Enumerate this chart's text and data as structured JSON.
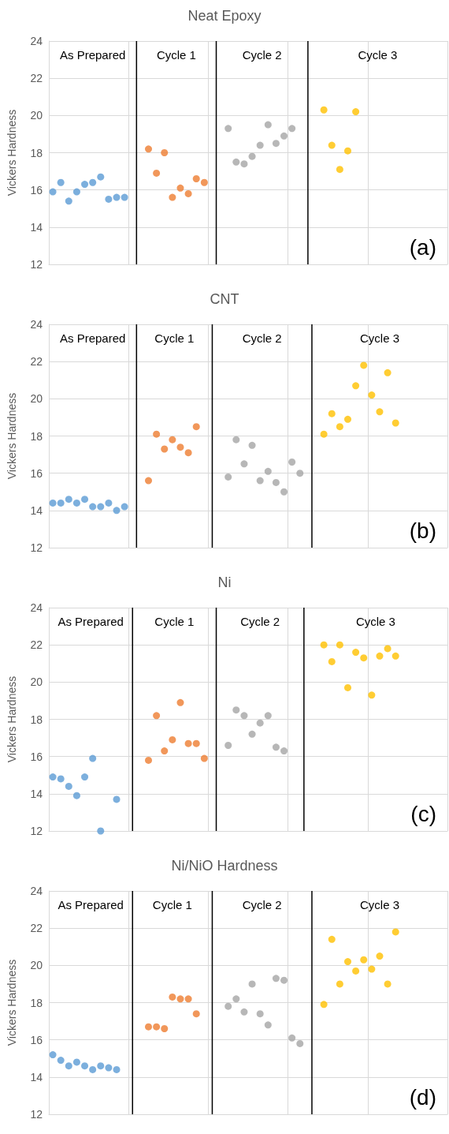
{
  "chart_data": [
    {
      "type": "scatter",
      "title": "Neat Epoxy",
      "ylabel": "Vickers Hardness",
      "categories": [
        null,
        null,
        null,
        null,
        null,
        null,
        null,
        null,
        null,
        null,
        null,
        null,
        null,
        null,
        null,
        null,
        null,
        null,
        null,
        null,
        null,
        null,
        null,
        null,
        null,
        null,
        null,
        null,
        null,
        null,
        null,
        null,
        null,
        null,
        null,
        null,
        null,
        null,
        null,
        null,
        null,
        null,
        null,
        null,
        null,
        null,
        null,
        null,
        null,
        null
      ],
      "ylim": [
        12,
        24
      ],
      "yticks": [
        12,
        14,
        16,
        18,
        20,
        22,
        24
      ],
      "tick_labels": "y",
      "grid": true,
      "marker": "circle",
      "series": [
        {
          "color": "#5b9bd5",
          "values": [
            15.9,
            16.4,
            15.4,
            15.9,
            16.3,
            16.4,
            16.7,
            15.5,
            15.6,
            15.6,
            null,
            null,
            null,
            null,
            null,
            null,
            null,
            null,
            null,
            null,
            null,
            null,
            null,
            null,
            null,
            null,
            null,
            null,
            null,
            null,
            null,
            null,
            null,
            null,
            null,
            null,
            null,
            null,
            null,
            null,
            null,
            null,
            null,
            null,
            null,
            null,
            null,
            null,
            null,
            null
          ]
        },
        {
          "color": "#ed7d31",
          "values": [
            null,
            null,
            null,
            null,
            null,
            null,
            null,
            null,
            null,
            null,
            null,
            null,
            18.2,
            16.9,
            18.0,
            15.6,
            16.1,
            15.8,
            16.6,
            16.4,
            null,
            null,
            null,
            null,
            null,
            null,
            null,
            null,
            null,
            null,
            null,
            null,
            null,
            null,
            null,
            null,
            null,
            null,
            null,
            null,
            null,
            null,
            null,
            null,
            null,
            null,
            null,
            null,
            null,
            null
          ]
        },
        {
          "color": "#a5a5a5",
          "values": [
            null,
            null,
            null,
            null,
            null,
            null,
            null,
            null,
            null,
            null,
            null,
            null,
            null,
            null,
            null,
            null,
            null,
            null,
            null,
            null,
            null,
            null,
            19.3,
            17.5,
            17.4,
            17.8,
            18.4,
            19.5,
            18.5,
            18.9,
            19.3,
            null,
            null,
            null,
            null,
            null,
            null,
            null,
            null,
            null,
            null,
            null,
            null,
            null,
            null,
            null,
            null,
            null,
            null,
            null
          ]
        },
        {
          "color": "#ffc000",
          "values": [
            null,
            null,
            null,
            null,
            null,
            null,
            null,
            null,
            null,
            null,
            null,
            null,
            null,
            null,
            null,
            null,
            null,
            null,
            null,
            null,
            null,
            null,
            null,
            null,
            null,
            null,
            null,
            null,
            null,
            null,
            null,
            null,
            null,
            null,
            20.3,
            18.4,
            17.1,
            18.1,
            20.2,
            null,
            null,
            null,
            null,
            null,
            null,
            null,
            null,
            null,
            null,
            null
          ]
        }
      ],
      "annotations": [
        "As Prepared",
        "Cycle 1",
        "Cycle 2",
        "Cycle 3",
        "(a)"
      ]
    },
    {
      "type": "scatter",
      "title": "CNT",
      "ylabel": "Vickers Hardness",
      "categories": [
        null,
        null,
        null,
        null,
        null,
        null,
        null,
        null,
        null,
        null,
        null,
        null,
        null,
        null,
        null,
        null,
        null,
        null,
        null,
        null,
        null,
        null,
        null,
        null,
        null,
        null,
        null,
        null,
        null,
        null,
        null,
        null,
        null,
        null,
        null,
        null,
        null,
        null,
        null,
        null,
        null,
        null,
        null,
        null,
        null,
        null,
        null,
        null,
        null,
        null
      ],
      "ylim": [
        12,
        24
      ],
      "yticks": [
        12,
        14,
        16,
        18,
        20,
        22,
        24
      ],
      "tick_labels": "y",
      "grid": true,
      "marker": "circle",
      "series": [
        {
          "color": "#5b9bd5",
          "values": [
            14.4,
            14.4,
            14.6,
            14.4,
            14.6,
            14.2,
            14.2,
            14.4,
            14.0,
            14.2,
            null,
            null,
            null,
            null,
            null,
            null,
            null,
            null,
            null,
            null,
            null,
            null,
            null,
            null,
            null,
            null,
            null,
            null,
            null,
            null,
            null,
            null,
            null,
            null,
            null,
            null,
            null,
            null,
            null,
            null,
            null,
            null,
            null,
            null,
            null,
            null,
            null,
            null,
            null,
            null
          ]
        },
        {
          "color": "#ed7d31",
          "values": [
            null,
            null,
            null,
            null,
            null,
            null,
            null,
            null,
            null,
            null,
            null,
            null,
            15.6,
            18.1,
            17.3,
            17.8,
            17.4,
            17.1,
            18.5,
            null,
            null,
            null,
            null,
            null,
            null,
            null,
            null,
            null,
            null,
            null,
            null,
            null,
            null,
            null,
            null,
            null,
            null,
            null,
            null,
            null,
            null,
            null,
            null,
            null,
            null,
            null,
            null,
            null,
            null,
            null
          ]
        },
        {
          "color": "#a5a5a5",
          "values": [
            null,
            null,
            null,
            null,
            null,
            null,
            null,
            null,
            null,
            null,
            null,
            null,
            null,
            null,
            null,
            null,
            null,
            null,
            null,
            null,
            null,
            null,
            15.8,
            17.8,
            16.5,
            17.5,
            15.6,
            16.1,
            15.5,
            15.0,
            16.6,
            16.0,
            null,
            null,
            null,
            null,
            null,
            null,
            null,
            null,
            null,
            null,
            null,
            null,
            null,
            null,
            null,
            null,
            null,
            null
          ]
        },
        {
          "color": "#ffc000",
          "values": [
            null,
            null,
            null,
            null,
            null,
            null,
            null,
            null,
            null,
            null,
            null,
            null,
            null,
            null,
            null,
            null,
            null,
            null,
            null,
            null,
            null,
            null,
            null,
            null,
            null,
            null,
            null,
            null,
            null,
            null,
            null,
            null,
            null,
            null,
            18.1,
            19.2,
            18.5,
            18.9,
            20.7,
            21.8,
            20.2,
            19.3,
            21.4,
            18.7,
            null,
            null,
            null,
            null,
            null,
            null
          ]
        }
      ],
      "annotations": [
        "As Prepared",
        "Cycle 1",
        "Cycle 2",
        "Cycle 3",
        "(b)"
      ]
    },
    {
      "type": "scatter",
      "title": "Ni",
      "ylabel": "Vickers Hardness",
      "categories": [
        null,
        null,
        null,
        null,
        null,
        null,
        null,
        null,
        null,
        null,
        null,
        null,
        null,
        null,
        null,
        null,
        null,
        null,
        null,
        null,
        null,
        null,
        null,
        null,
        null,
        null,
        null,
        null,
        null,
        null,
        null,
        null,
        null,
        null,
        null,
        null,
        null,
        null,
        null,
        null,
        null,
        null,
        null,
        null,
        null,
        null,
        null,
        null,
        null,
        null
      ],
      "ylim": [
        12,
        24
      ],
      "yticks": [
        12,
        14,
        16,
        18,
        20,
        22,
        24
      ],
      "tick_labels": "y",
      "grid": true,
      "marker": "circle",
      "series": [
        {
          "color": "#5b9bd5",
          "values": [
            14.9,
            14.8,
            14.4,
            13.9,
            14.9,
            15.9,
            12.0,
            null,
            13.7,
            null,
            null,
            null,
            null,
            null,
            null,
            null,
            null,
            null,
            null,
            null,
            null,
            null,
            null,
            null,
            null,
            null,
            null,
            null,
            null,
            null,
            null,
            null,
            null,
            null,
            null,
            null,
            null,
            null,
            null,
            null,
            null,
            null,
            null,
            null,
            null,
            null,
            null,
            null,
            null,
            null
          ]
        },
        {
          "color": "#ed7d31",
          "values": [
            null,
            null,
            null,
            null,
            null,
            null,
            null,
            null,
            null,
            null,
            null,
            null,
            15.8,
            18.2,
            16.3,
            16.9,
            18.9,
            16.7,
            16.7,
            15.9,
            null,
            null,
            null,
            null,
            null,
            null,
            null,
            null,
            null,
            null,
            null,
            null,
            null,
            null,
            null,
            null,
            null,
            null,
            null,
            null,
            null,
            null,
            null,
            null,
            null,
            null,
            null,
            null,
            null,
            null
          ]
        },
        {
          "color": "#a5a5a5",
          "values": [
            null,
            null,
            null,
            null,
            null,
            null,
            null,
            null,
            null,
            null,
            null,
            null,
            null,
            null,
            null,
            null,
            null,
            null,
            null,
            null,
            null,
            null,
            16.6,
            18.5,
            18.2,
            17.2,
            17.8,
            18.2,
            16.5,
            16.3,
            null,
            null,
            null,
            null,
            null,
            null,
            null,
            null,
            null,
            null,
            null,
            null,
            null,
            null,
            null,
            null,
            null,
            null,
            null,
            null
          ]
        },
        {
          "color": "#ffc000",
          "values": [
            null,
            null,
            null,
            null,
            null,
            null,
            null,
            null,
            null,
            null,
            null,
            null,
            null,
            null,
            null,
            null,
            null,
            null,
            null,
            null,
            null,
            null,
            null,
            null,
            null,
            null,
            null,
            null,
            null,
            null,
            null,
            null,
            null,
            null,
            22.0,
            21.1,
            22.0,
            19.7,
            21.6,
            21.3,
            19.3,
            21.4,
            21.8,
            21.4,
            null,
            null,
            null,
            null,
            null,
            null
          ]
        }
      ],
      "annotations": [
        "As Prepared",
        "Cycle 1",
        "Cycle 2",
        "Cycle 3",
        "(c)"
      ]
    },
    {
      "type": "scatter",
      "title": "Ni/NiO Hardness",
      "ylabel": "Vickers Hardness",
      "categories": [
        null,
        null,
        null,
        null,
        null,
        null,
        null,
        null,
        null,
        null,
        null,
        null,
        null,
        null,
        null,
        null,
        null,
        null,
        null,
        null,
        null,
        null,
        null,
        null,
        null,
        null,
        null,
        null,
        null,
        null,
        null,
        null,
        null,
        null,
        null,
        null,
        null,
        null,
        null,
        null,
        null,
        null,
        null,
        null,
        null,
        null,
        null,
        null,
        null,
        null
      ],
      "ylim": [
        12,
        24
      ],
      "yticks": [
        12,
        14,
        16,
        18,
        20,
        22,
        24
      ],
      "tick_labels": "y",
      "grid": true,
      "marker": "circle",
      "series": [
        {
          "color": "#5b9bd5",
          "values": [
            15.2,
            14.9,
            14.6,
            14.8,
            14.6,
            14.4,
            14.6,
            14.5,
            14.4,
            null,
            null,
            null,
            null,
            null,
            null,
            null,
            null,
            null,
            null,
            null,
            null,
            null,
            null,
            null,
            null,
            null,
            null,
            null,
            null,
            null,
            null,
            null,
            null,
            null,
            null,
            null,
            null,
            null,
            null,
            null,
            null,
            null,
            null,
            null,
            null,
            null,
            null,
            null,
            null,
            null
          ]
        },
        {
          "color": "#ed7d31",
          "values": [
            null,
            null,
            null,
            null,
            null,
            null,
            null,
            null,
            null,
            null,
            null,
            null,
            16.7,
            16.7,
            16.6,
            18.3,
            18.2,
            18.2,
            17.4,
            null,
            null,
            null,
            null,
            null,
            null,
            null,
            null,
            null,
            null,
            null,
            null,
            null,
            null,
            null,
            null,
            null,
            null,
            null,
            null,
            null,
            null,
            null,
            null,
            null,
            null,
            null,
            null,
            null,
            null,
            null
          ]
        },
        {
          "color": "#a5a5a5",
          "values": [
            null,
            null,
            null,
            null,
            null,
            null,
            null,
            null,
            null,
            null,
            null,
            null,
            null,
            null,
            null,
            null,
            null,
            null,
            null,
            null,
            null,
            null,
            17.8,
            18.2,
            17.5,
            19.0,
            17.4,
            16.8,
            19.3,
            19.2,
            16.1,
            15.8,
            null,
            null,
            null,
            null,
            null,
            null,
            null,
            null,
            null,
            null,
            null,
            null,
            null,
            null,
            null,
            null,
            null,
            null
          ]
        },
        {
          "color": "#ffc000",
          "values": [
            null,
            null,
            null,
            null,
            null,
            null,
            null,
            null,
            null,
            null,
            null,
            null,
            null,
            null,
            null,
            null,
            null,
            null,
            null,
            null,
            null,
            null,
            null,
            null,
            null,
            null,
            null,
            null,
            null,
            null,
            null,
            null,
            null,
            null,
            17.9,
            21.4,
            19.0,
            20.2,
            19.7,
            20.3,
            19.8,
            20.5,
            19.0,
            21.8,
            null,
            null,
            null,
            null,
            null,
            null
          ]
        }
      ],
      "annotations": [
        "As Prepared",
        "Cycle 1",
        "Cycle 2",
        "Cycle 3",
        "(d)"
      ]
    }
  ]
}
